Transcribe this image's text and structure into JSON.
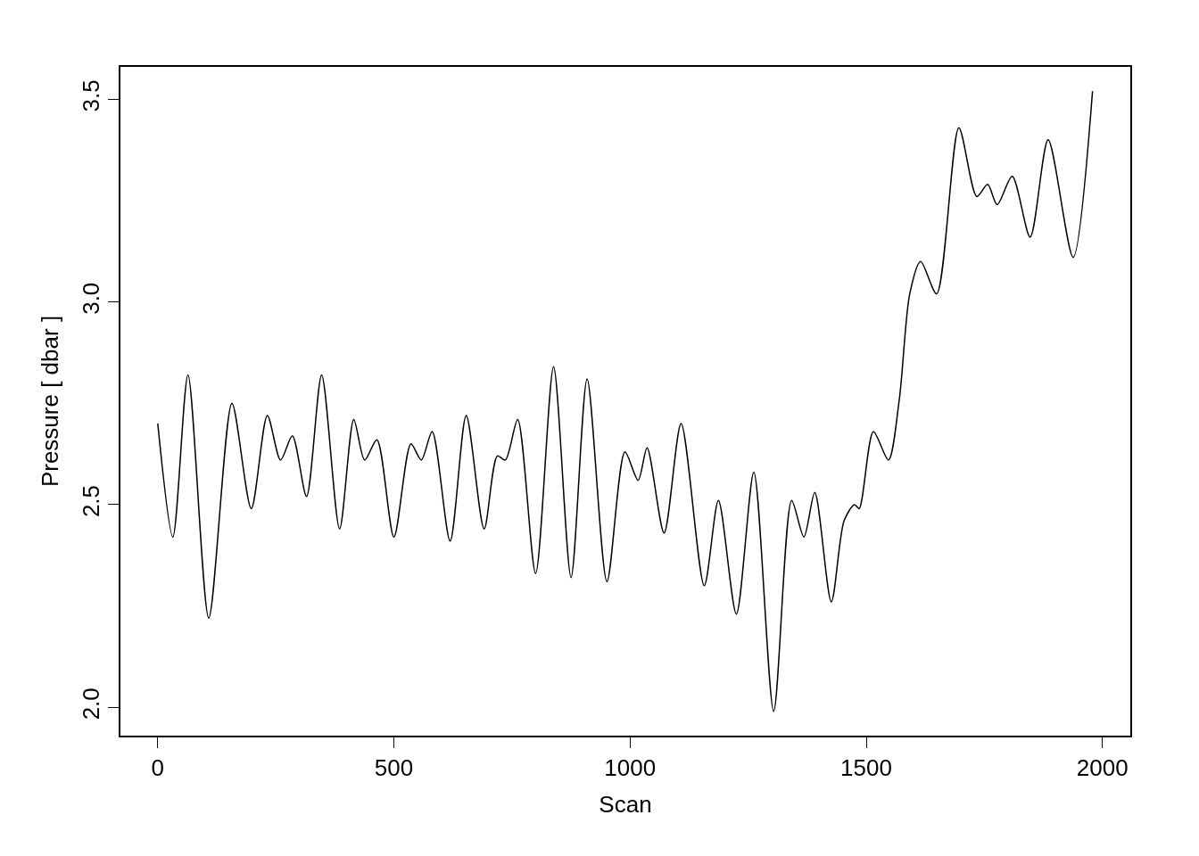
{
  "chart_data": {
    "type": "line",
    "xlabel": "Scan",
    "ylabel": "Pressure [ dbar ]",
    "x": [
      0,
      32,
      64,
      108,
      157,
      198,
      232,
      260,
      285,
      315,
      347,
      385,
      415,
      438,
      464,
      500,
      536,
      558,
      581,
      619,
      653,
      691,
      719,
      736,
      762,
      800,
      838,
      875,
      909,
      951,
      989,
      1017,
      1036,
      1072,
      1108,
      1157,
      1187,
      1225,
      1262,
      1304,
      1342,
      1368,
      1391,
      1426,
      1453,
      1475,
      1485,
      1515,
      1547,
      1570,
      1592,
      1615,
      1649,
      1696,
      1734,
      1757,
      1777,
      1809,
      1847,
      1885,
      1938,
      1979
    ],
    "series": [
      {
        "color": "#000000",
        "values": [
          2.7,
          2.42,
          2.82,
          2.22,
          2.75,
          2.49,
          2.72,
          2.61,
          2.67,
          2.52,
          2.82,
          2.44,
          2.71,
          2.61,
          2.66,
          2.42,
          2.65,
          2.61,
          2.68,
          2.41,
          2.72,
          2.44,
          2.62,
          2.61,
          2.71,
          2.33,
          2.84,
          2.32,
          2.81,
          2.31,
          2.63,
          2.56,
          2.64,
          2.43,
          2.7,
          2.3,
          2.51,
          2.23,
          2.58,
          1.99,
          2.51,
          2.42,
          2.53,
          2.26,
          2.46,
          2.5,
          2.49,
          2.68,
          2.61,
          2.76,
          3.02,
          3.1,
          3.02,
          3.43,
          3.26,
          3.29,
          3.24,
          3.31,
          3.16,
          3.4,
          3.11,
          3.52
        ]
      }
    ],
    "xlim": [
      -79,
      2059
    ],
    "ylim": [
      1.93,
      3.58
    ],
    "xticks": [
      0,
      500,
      1000,
      1500,
      2000
    ],
    "yticks": [
      {
        "value": 2,
        "label": "2.0"
      },
      {
        "value": 2.5,
        "label": "2.5"
      },
      {
        "value": 3,
        "label": "3.0"
      },
      {
        "value": 3.5,
        "label": "3.5"
      }
    ],
    "marker": "none",
    "line_style": "solid"
  }
}
